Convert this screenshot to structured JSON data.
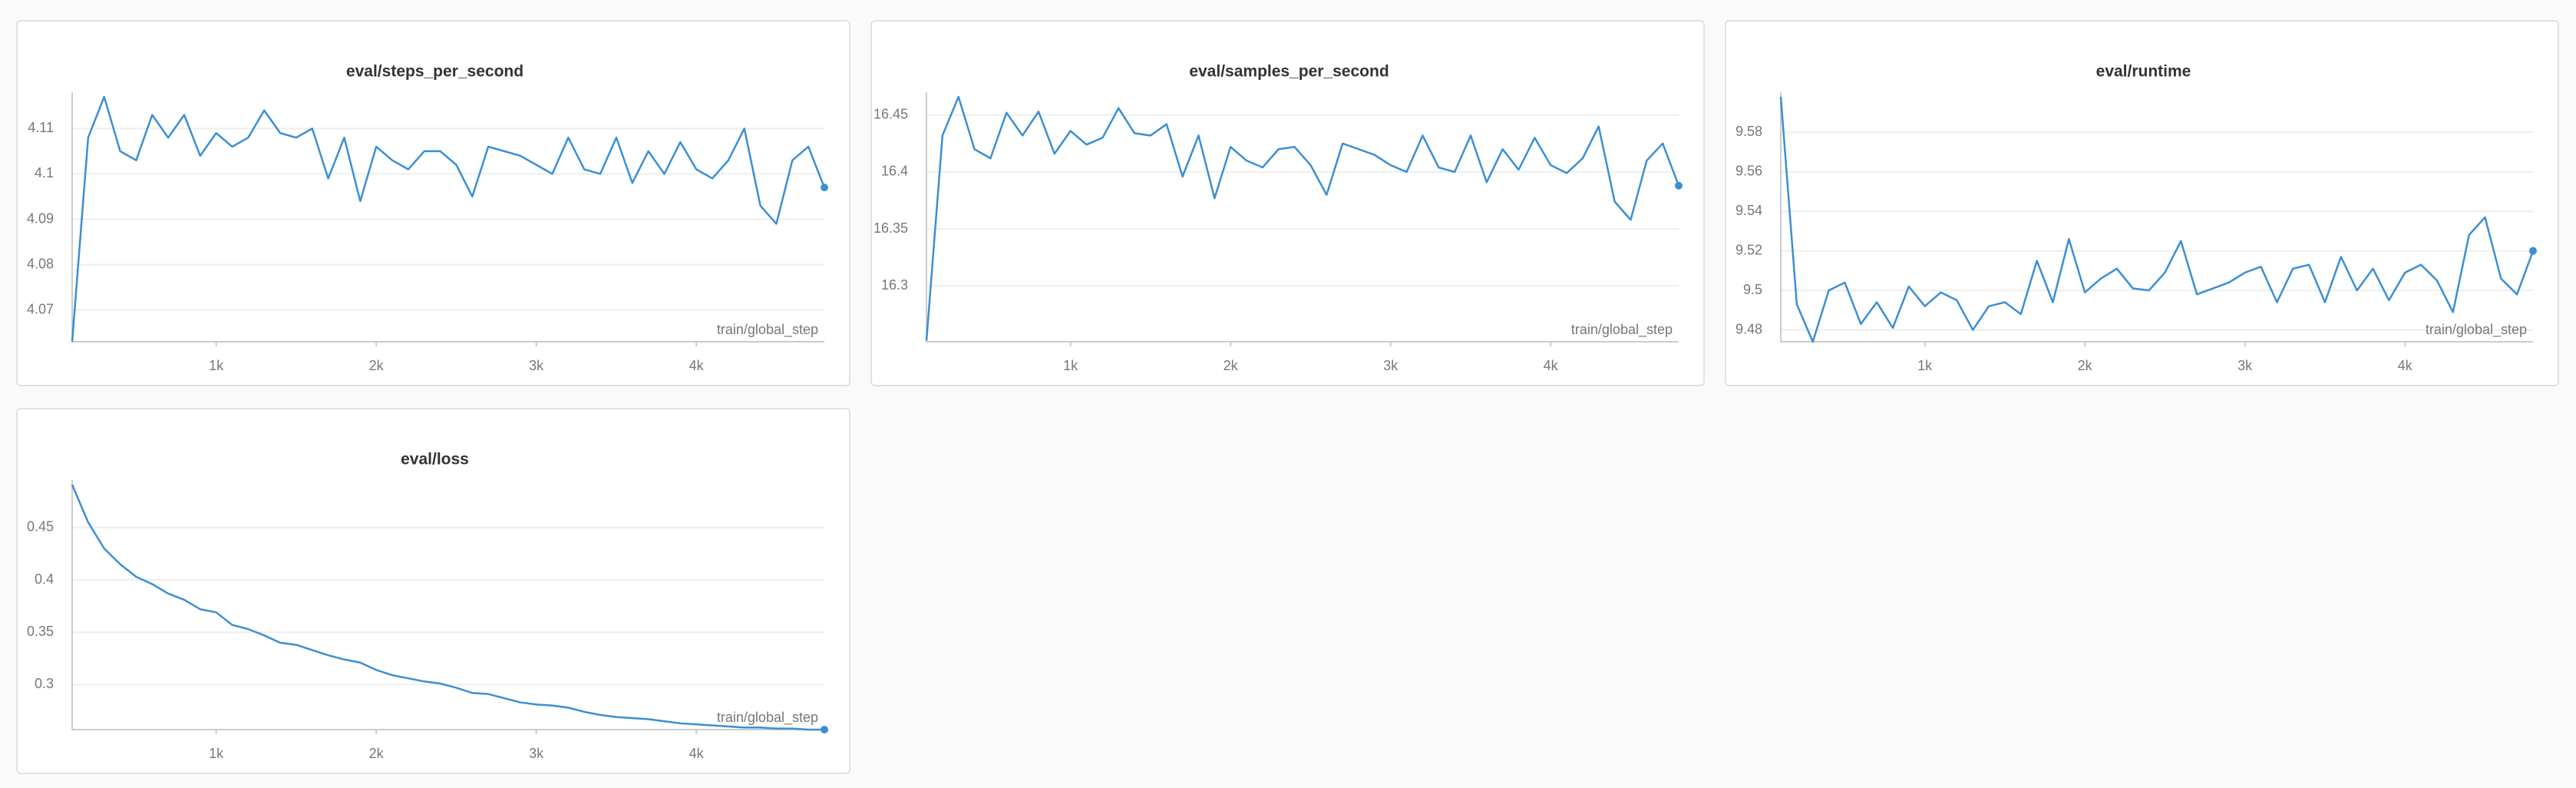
{
  "chart_data": [
    {
      "type": "line",
      "title": "eval/steps_per_second",
      "xlabel": "train/global_step",
      "color": "#3b8fd4",
      "x": [
        100,
        200,
        300,
        400,
        500,
        600,
        700,
        800,
        900,
        1000,
        1100,
        1200,
        1300,
        1400,
        1500,
        1600,
        1700,
        1800,
        1900,
        2000,
        2100,
        2200,
        2300,
        2400,
        2500,
        2600,
        2700,
        2800,
        2900,
        3000,
        3100,
        3200,
        3300,
        3400,
        3500,
        3600,
        3700,
        3800,
        3900,
        4000,
        4100,
        4200,
        4300,
        4400,
        4500,
        4600,
        4700,
        4800
      ],
      "values": [
        4.063,
        4.108,
        4.117,
        4.105,
        4.103,
        4.113,
        4.108,
        4.113,
        4.104,
        4.109,
        4.106,
        4.108,
        4.114,
        4.109,
        4.108,
        4.11,
        4.099,
        4.108,
        4.094,
        4.106,
        4.103,
        4.101,
        4.105,
        4.105,
        4.102,
        4.095,
        4.106,
        4.105,
        4.104,
        4.102,
        4.1,
        4.108,
        4.101,
        4.1,
        4.108,
        4.098,
        4.105,
        4.1,
        4.107,
        4.101,
        4.099,
        4.103,
        4.11,
        4.093,
        4.089,
        4.103,
        4.106,
        4.097
      ],
      "xlim": [
        100,
        4800
      ],
      "xticks": [
        {
          "value": 1000,
          "label": "1k"
        },
        {
          "value": 2000,
          "label": "2k"
        },
        {
          "value": 3000,
          "label": "3k"
        },
        {
          "value": 4000,
          "label": "4k"
        }
      ],
      "ylim": [
        4.063,
        4.117
      ],
      "yticks": [
        4.07,
        4.08,
        4.09,
        4.1,
        4.11
      ],
      "grid": true
    },
    {
      "type": "line",
      "title": "eval/samples_per_second",
      "xlabel": "train/global_step",
      "color": "#3b8fd4",
      "x": [
        100,
        200,
        300,
        400,
        500,
        600,
        700,
        800,
        900,
        1000,
        1100,
        1200,
        1300,
        1400,
        1500,
        1600,
        1700,
        1800,
        1900,
        2000,
        2100,
        2200,
        2300,
        2400,
        2500,
        2600,
        2700,
        2800,
        2900,
        3000,
        3100,
        3200,
        3300,
        3400,
        3500,
        3600,
        3700,
        3800,
        3900,
        4000,
        4100,
        4200,
        4300,
        4400,
        4500,
        4600,
        4700,
        4800
      ],
      "values": [
        16.252,
        16.432,
        16.466,
        16.42,
        16.412,
        16.452,
        16.432,
        16.453,
        16.416,
        16.436,
        16.424,
        16.43,
        16.456,
        16.434,
        16.432,
        16.442,
        16.396,
        16.432,
        16.377,
        16.422,
        16.41,
        16.404,
        16.42,
        16.422,
        16.406,
        16.38,
        16.425,
        16.42,
        16.415,
        16.406,
        16.4,
        16.432,
        16.404,
        16.4,
        16.432,
        16.391,
        16.42,
        16.402,
        16.43,
        16.406,
        16.399,
        16.412,
        16.44,
        16.374,
        16.358,
        16.41,
        16.425,
        16.388
      ],
      "xlim": [
        100,
        4800
      ],
      "xticks": [
        {
          "value": 1000,
          "label": "1k"
        },
        {
          "value": 2000,
          "label": "2k"
        },
        {
          "value": 3000,
          "label": "3k"
        },
        {
          "value": 4000,
          "label": "4k"
        }
      ],
      "ylim": [
        16.251,
        16.466
      ],
      "yticks": [
        16.3,
        16.35,
        16.4,
        16.45
      ],
      "grid": true
    },
    {
      "type": "line",
      "title": "eval/runtime",
      "xlabel": "train/global_step",
      "color": "#3b8fd4",
      "x": [
        100,
        200,
        300,
        400,
        500,
        600,
        700,
        800,
        900,
        1000,
        1100,
        1200,
        1300,
        1400,
        1500,
        1600,
        1700,
        1800,
        1900,
        2000,
        2100,
        2200,
        2300,
        2400,
        2500,
        2600,
        2700,
        2800,
        2900,
        3000,
        3100,
        3200,
        3300,
        3400,
        3500,
        3600,
        3700,
        3800,
        3900,
        4000,
        4100,
        4200,
        4300,
        4400,
        4500,
        4600,
        4700,
        4800
      ],
      "values": [
        9.598,
        9.493,
        9.474,
        9.5,
        9.504,
        9.483,
        9.494,
        9.481,
        9.502,
        9.492,
        9.499,
        9.495,
        9.48,
        9.492,
        9.494,
        9.488,
        9.515,
        9.494,
        9.526,
        9.499,
        9.506,
        9.511,
        9.501,
        9.5,
        9.509,
        9.525,
        9.498,
        9.501,
        9.504,
        9.509,
        9.512,
        9.494,
        9.511,
        9.513,
        9.494,
        9.517,
        9.5,
        9.511,
        9.495,
        9.509,
        9.513,
        9.505,
        9.489,
        9.528,
        9.537,
        9.506,
        9.498,
        9.52
      ],
      "xlim": [
        100,
        4800
      ],
      "xticks": [
        {
          "value": 1000,
          "label": "1k"
        },
        {
          "value": 2000,
          "label": "2k"
        },
        {
          "value": 3000,
          "label": "3k"
        },
        {
          "value": 4000,
          "label": "4k"
        }
      ],
      "ylim": [
        9.474,
        9.598
      ],
      "yticks": [
        9.48,
        9.5,
        9.52,
        9.54,
        9.56,
        9.58
      ],
      "grid": true
    },
    {
      "type": "line",
      "title": "eval/loss",
      "xlabel": "train/global_step",
      "color": "#3b8fd4",
      "x": [
        100,
        200,
        300,
        400,
        500,
        600,
        700,
        800,
        900,
        1000,
        1100,
        1200,
        1300,
        1400,
        1500,
        1600,
        1700,
        1800,
        1900,
        2000,
        2100,
        2200,
        2300,
        2400,
        2500,
        2600,
        2700,
        2800,
        2900,
        3000,
        3100,
        3200,
        3300,
        3400,
        3500,
        3600,
        3700,
        3800,
        3900,
        4000,
        4100,
        4200,
        4300,
        4400,
        4500,
        4600,
        4700,
        4800
      ],
      "values": [
        0.491,
        0.455,
        0.43,
        0.415,
        0.403,
        0.396,
        0.387,
        0.381,
        0.372,
        0.369,
        0.357,
        0.353,
        0.347,
        0.34,
        0.338,
        0.333,
        0.328,
        0.324,
        0.321,
        0.314,
        0.309,
        0.306,
        0.303,
        0.301,
        0.297,
        0.292,
        0.291,
        0.287,
        0.283,
        0.281,
        0.28,
        0.278,
        0.274,
        0.271,
        0.269,
        0.268,
        0.267,
        0.265,
        0.263,
        0.262,
        0.261,
        0.26,
        0.259,
        0.259,
        0.258,
        0.258,
        0.257,
        0.257
      ],
      "xlim": [
        100,
        4800
      ],
      "xticks": [
        {
          "value": 1000,
          "label": "1k"
        },
        {
          "value": 2000,
          "label": "2k"
        },
        {
          "value": 3000,
          "label": "3k"
        },
        {
          "value": 4000,
          "label": "4k"
        }
      ],
      "ylim": [
        0.257,
        0.491
      ],
      "yticks": [
        0.3,
        0.35,
        0.4,
        0.45
      ],
      "grid": true
    }
  ]
}
